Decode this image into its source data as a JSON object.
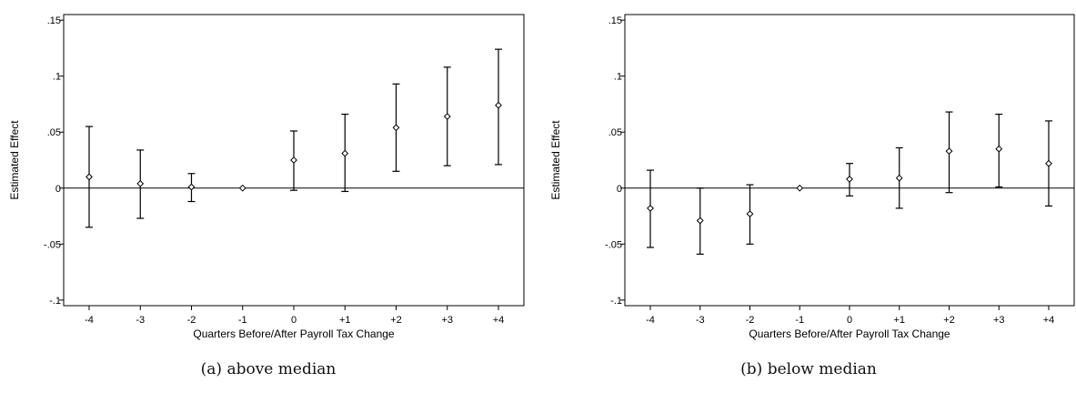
{
  "chart_data": [
    {
      "type": "scatter",
      "caption": "(a) above median",
      "xlabel": "Quarters Before/After Payroll Tax Change",
      "ylabel": "Estimated Effect",
      "categories": [
        "-4",
        "-3",
        "-2",
        "-1",
        "0",
        "+1",
        "+2",
        "+3",
        "+4"
      ],
      "values": [
        0.01,
        0.004,
        0.001,
        0.0,
        0.025,
        0.031,
        0.054,
        0.064,
        0.074
      ],
      "ci_lower": [
        -0.035,
        -0.027,
        -0.012,
        0.0,
        -0.002,
        -0.003,
        0.015,
        0.02,
        0.021
      ],
      "ci_upper": [
        0.055,
        0.034,
        0.013,
        0.0,
        0.051,
        0.066,
        0.093,
        0.108,
        0.124
      ],
      "ylim": [
        -0.105,
        0.155
      ],
      "yticks": [
        ".15",
        ".1",
        ".05",
        "0",
        "-.05",
        "-.1"
      ],
      "ytick_values": [
        0.15,
        0.1,
        0.05,
        0,
        -0.05,
        -0.1
      ],
      "reference_line": 0,
      "grid": false
    },
    {
      "type": "scatter",
      "caption": "(b) below median",
      "xlabel": "Quarters Before/After Payroll Tax Change",
      "ylabel": "Estimated Effect",
      "categories": [
        "-4",
        "-3",
        "-2",
        "-1",
        "0",
        "+1",
        "+2",
        "+3",
        "+4"
      ],
      "values": [
        -0.018,
        -0.029,
        -0.023,
        0.0,
        0.008,
        0.009,
        0.033,
        0.035,
        0.022
      ],
      "ci_lower": [
        -0.053,
        -0.059,
        -0.05,
        0.0,
        -0.007,
        -0.018,
        -0.004,
        0.001,
        -0.016
      ],
      "ci_upper": [
        0.016,
        0.0,
        0.003,
        0.0,
        0.022,
        0.036,
        0.068,
        0.066,
        0.06
      ],
      "ylim": [
        -0.105,
        0.155
      ],
      "yticks": [
        ".15",
        ".1",
        ".05",
        "0",
        "-.05",
        "-.1"
      ],
      "ytick_values": [
        0.15,
        0.1,
        0.05,
        0,
        -0.05,
        -0.1
      ],
      "reference_line": 0,
      "grid": false
    }
  ]
}
